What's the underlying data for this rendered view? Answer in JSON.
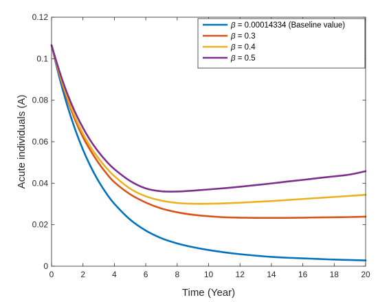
{
  "chart_data": {
    "type": "line",
    "xlabel": "Time (Year)",
    "ylabel": "Acute individuals (A)",
    "xlim": [
      0,
      20
    ],
    "ylim": [
      0,
      0.12
    ],
    "xticks": [
      0,
      2,
      4,
      6,
      8,
      10,
      12,
      14,
      16,
      18,
      20
    ],
    "yticks": [
      0,
      0.02,
      0.04,
      0.06,
      0.08,
      0.1,
      0.12
    ],
    "xtick_labels": [
      "0",
      "2",
      "4",
      "6",
      "8",
      "10",
      "12",
      "14",
      "16",
      "18",
      "20"
    ],
    "ytick_labels": [
      "0",
      "0.02",
      "0.04",
      "0.06",
      "0.08",
      "0.1",
      "0.12"
    ],
    "grid": false,
    "legend_position": "top-right",
    "series": [
      {
        "symbol": "β",
        "name": " = 0.00014334 (Baseline value)",
        "color": "#0072BD",
        "x": [
          0,
          0.5,
          1,
          1.5,
          2,
          2.5,
          3,
          3.5,
          4,
          5,
          6,
          7,
          8,
          9,
          10,
          11,
          12,
          13,
          14,
          15,
          16,
          17,
          18,
          19,
          20
        ],
        "y": [
          0.1065,
          0.091,
          0.0775,
          0.066,
          0.0562,
          0.0479,
          0.0409,
          0.035,
          0.0301,
          0.0225,
          0.0172,
          0.0135,
          0.011,
          0.0092,
          0.0078,
          0.0067,
          0.0058,
          0.0051,
          0.0045,
          0.0041,
          0.0038,
          0.0035,
          0.0032,
          0.003,
          0.0028
        ]
      },
      {
        "symbol": "β",
        "name": " = 0.3",
        "color": "#D95319",
        "x": [
          0,
          0.5,
          1,
          1.5,
          2,
          2.5,
          3,
          3.5,
          4,
          5,
          6,
          7,
          8,
          9,
          10,
          11,
          12,
          13,
          14,
          15,
          16,
          17,
          18,
          19,
          20
        ],
        "y": [
          0.1065,
          0.0925,
          0.0805,
          0.0705,
          0.0622,
          0.0555,
          0.0497,
          0.0447,
          0.0405,
          0.0347,
          0.0307,
          0.0278,
          0.026,
          0.0248,
          0.0241,
          0.0236,
          0.0234,
          0.0233,
          0.0233,
          0.0233,
          0.0234,
          0.0235,
          0.0236,
          0.0237,
          0.0239
        ]
      },
      {
        "symbol": "β",
        "name": " = 0.4",
        "color": "#EDB120",
        "x": [
          0,
          0.5,
          1,
          1.5,
          2,
          2.5,
          3,
          3.5,
          4,
          5,
          6,
          7,
          8,
          9,
          10,
          11,
          12,
          13,
          14,
          15,
          16,
          17,
          18,
          19,
          20
        ],
        "y": [
          0.1065,
          0.093,
          0.0815,
          0.0718,
          0.0638,
          0.0573,
          0.0519,
          0.0473,
          0.0434,
          0.0374,
          0.0337,
          0.0316,
          0.0305,
          0.0301,
          0.0301,
          0.0303,
          0.0306,
          0.031,
          0.0314,
          0.0319,
          0.0324,
          0.0329,
          0.0334,
          0.0339,
          0.0344
        ]
      },
      {
        "symbol": "β",
        "name": " = 0.5",
        "color": "#7E2F8E",
        "x": [
          0,
          0.5,
          1,
          1.5,
          2,
          2.5,
          3,
          3.5,
          4,
          5,
          6,
          7,
          8,
          9,
          10,
          11,
          12,
          13,
          14,
          15,
          16,
          17,
          18,
          19,
          20
        ],
        "y": [
          0.1065,
          0.094,
          0.0832,
          0.0742,
          0.0667,
          0.0603,
          0.055,
          0.0505,
          0.0468,
          0.0411,
          0.0375,
          0.0361,
          0.036,
          0.0364,
          0.037,
          0.0376,
          0.0383,
          0.0391,
          0.0399,
          0.0408,
          0.0416,
          0.0425,
          0.0433,
          0.0442,
          0.0458
        ]
      }
    ]
  }
}
